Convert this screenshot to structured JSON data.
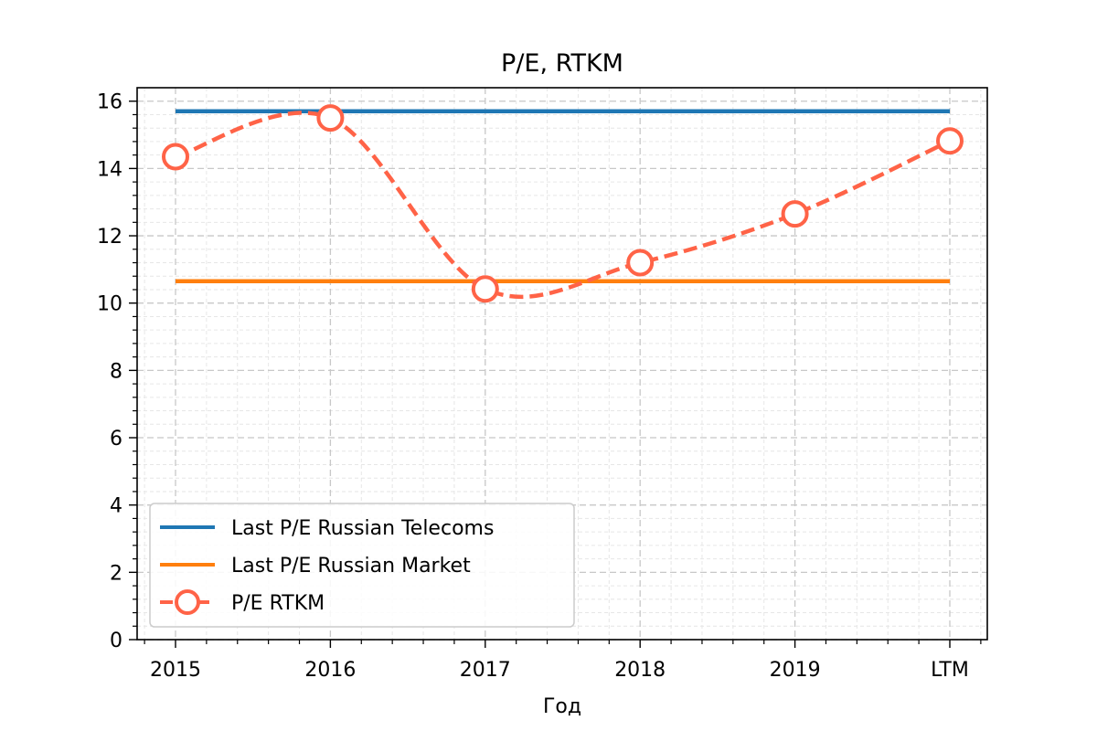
{
  "chart_data": {
    "type": "line",
    "title": "P/E, RTKM",
    "xlabel": "Год",
    "ylabel": "",
    "categories": [
      "2015",
      "2016",
      "2017",
      "2018",
      "2019",
      "LTM"
    ],
    "ylim": [
      0,
      16.4
    ],
    "yticks": [
      0,
      2,
      4,
      6,
      8,
      10,
      12,
      14,
      16
    ],
    "grid": true,
    "legend_position": "lower-left",
    "series": [
      {
        "name": "Last P/E Russian Telecoms",
        "style": "solid",
        "color": "#1f77b4",
        "values": [
          15.7,
          15.7,
          15.7,
          15.7,
          15.7,
          15.7
        ]
      },
      {
        "name": "Last P/E Russian Market",
        "style": "solid",
        "color": "#ff7f0e",
        "values": [
          10.65,
          10.65,
          10.65,
          10.65,
          10.65,
          10.65
        ]
      },
      {
        "name": "P/E RTKM",
        "style": "dashed-smooth-with-markers",
        "color": "#ff6347",
        "values": [
          14.35,
          15.5,
          10.42,
          11.2,
          12.65,
          14.82
        ]
      }
    ]
  }
}
